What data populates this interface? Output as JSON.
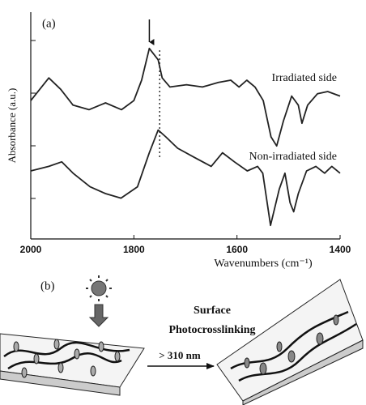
{
  "chart_data": {
    "type": "line",
    "panel_label": "(a)",
    "x_label": "Wavenumbers (cm⁻¹)",
    "y_label": "Absorbance (a.u.)",
    "xlim": [
      2000,
      1400
    ],
    "xticks": [
      2000,
      1800,
      1600,
      1400
    ],
    "ylim": [
      0,
      10
    ],
    "arrow_x": 1770,
    "dotted_line_x": 1750,
    "series": [
      {
        "name": "Irradiated side",
        "color": "#222222",
        "x": [
          2000,
          1965,
          1942,
          1918,
          1887,
          1855,
          1824,
          1800,
          1785,
          1770,
          1753,
          1745,
          1730,
          1698,
          1667,
          1636,
          1612,
          1596,
          1581,
          1565,
          1549,
          1534,
          1523,
          1510,
          1494,
          1481,
          1474,
          1463,
          1444,
          1424,
          1400
        ],
        "values": [
          6.1,
          7.1,
          6.6,
          5.9,
          5.7,
          6.0,
          5.7,
          6.1,
          7.0,
          8.4,
          7.9,
          7.1,
          6.7,
          6.8,
          6.7,
          6.9,
          7.0,
          6.7,
          7.0,
          6.7,
          6.1,
          4.5,
          4.1,
          5.2,
          6.3,
          5.9,
          5.1,
          5.9,
          6.4,
          6.5,
          6.3
        ]
      },
      {
        "name": "Non-irradiated side",
        "color": "#222222",
        "x": [
          2000,
          1965,
          1940,
          1918,
          1885,
          1855,
          1825,
          1793,
          1770,
          1753,
          1738,
          1715,
          1683,
          1650,
          1628,
          1605,
          1580,
          1560,
          1550,
          1535,
          1518,
          1507,
          1497,
          1490,
          1481,
          1465,
          1447,
          1430,
          1416,
          1400
        ],
        "values": [
          3.0,
          3.2,
          3.4,
          2.9,
          2.3,
          2.0,
          1.8,
          2.3,
          3.8,
          4.8,
          4.5,
          4.0,
          3.6,
          3.2,
          3.8,
          3.4,
          3.0,
          3.2,
          2.9,
          0.6,
          2.2,
          2.9,
          1.6,
          1.2,
          2.0,
          3.0,
          3.2,
          2.9,
          3.2,
          2.9
        ]
      }
    ]
  },
  "diagram": {
    "panel_label": "(b)",
    "title_lines": [
      "Surface",
      "Photocrosslinking"
    ],
    "wavelength_label": "> 310 nm"
  }
}
